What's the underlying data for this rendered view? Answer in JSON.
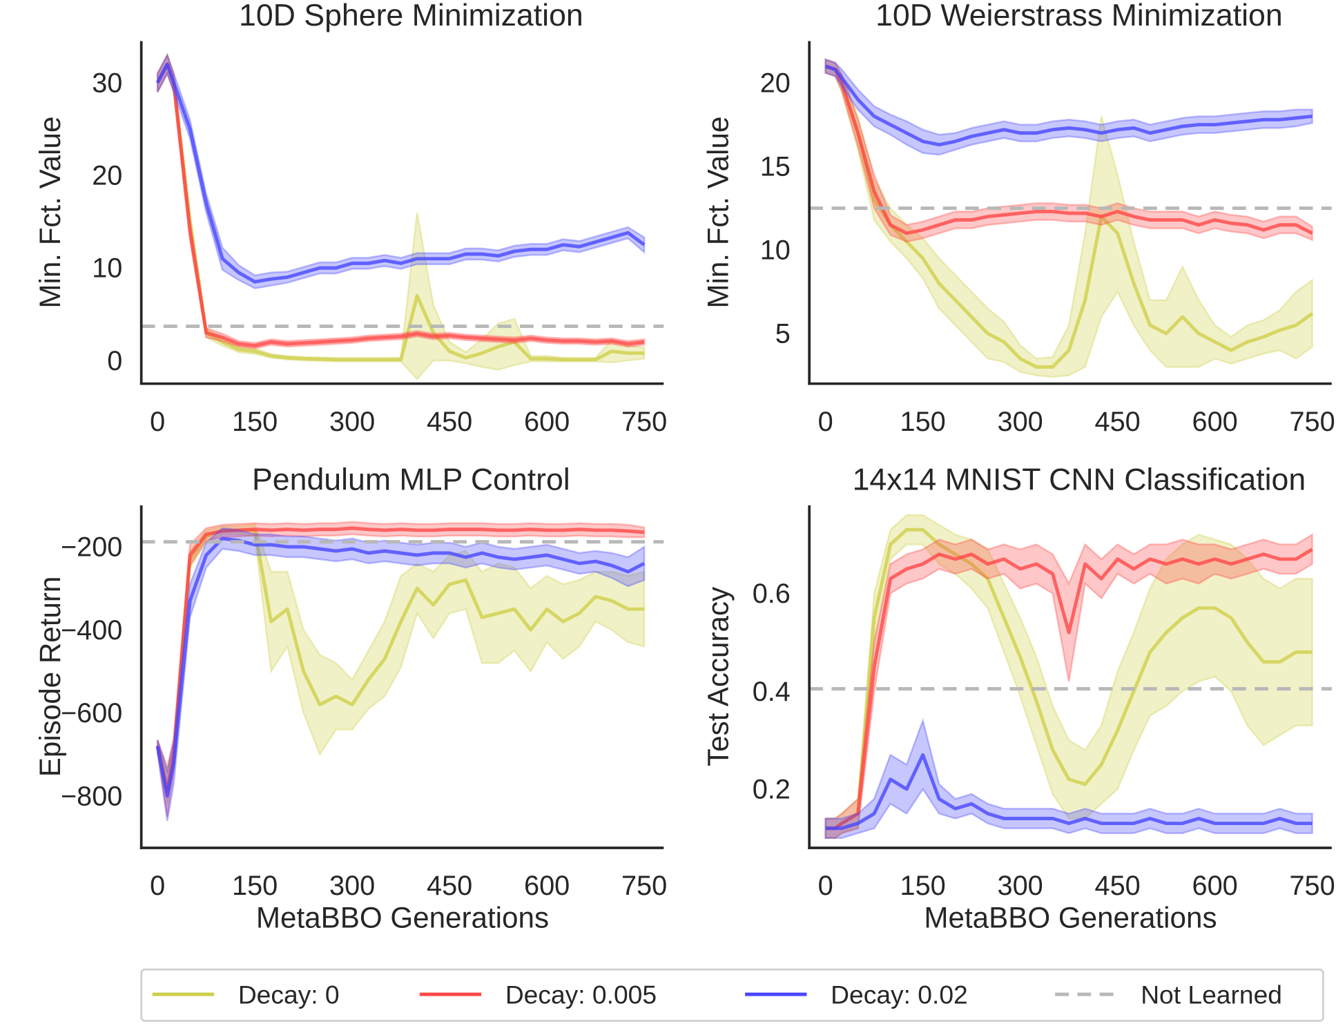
{
  "colors": {
    "decay_0": "#cfcf4a",
    "decay_0005": "#ff4747",
    "decay_002": "#4747ff",
    "not_learned": "#b8b8b8",
    "axis": "#262626"
  },
  "legend": [
    {
      "label": "Decay: 0",
      "color": "#cfcf4a",
      "style": "solid"
    },
    {
      "label": "Decay: 0.005",
      "color": "#ff4747",
      "style": "solid"
    },
    {
      "label": "Decay: 0.02",
      "color": "#4747ff",
      "style": "solid"
    },
    {
      "label": "Not Learned",
      "color": "#b8b8b8",
      "style": "dashed"
    }
  ],
  "chart_data": [
    {
      "type": "line",
      "title": "10D Sphere Minimization",
      "xlabel": "",
      "ylabel": "Min. Fct. Value",
      "xlim": [
        -25,
        780
      ],
      "ylim": [
        -2.5,
        34.5
      ],
      "xticks": [
        0,
        150,
        300,
        450,
        600,
        750
      ],
      "yticks": [
        0,
        10,
        20,
        30
      ],
      "grid": false,
      "not_learned": 3.7,
      "x": [
        0,
        15,
        25,
        50,
        75,
        100,
        125,
        150,
        175,
        200,
        225,
        250,
        275,
        300,
        325,
        350,
        375,
        400,
        425,
        450,
        475,
        500,
        525,
        550,
        575,
        600,
        625,
        650,
        675,
        700,
        725,
        750
      ],
      "series": [
        {
          "name": "Decay: 0",
          "values": [
            30,
            32,
            30,
            15,
            3,
            2,
            1.2,
            1,
            0.5,
            0.3,
            0.2,
            0.15,
            0.1,
            0.1,
            0.1,
            0.1,
            0.1,
            7,
            3,
            1,
            0.3,
            0.8,
            1.5,
            2,
            0.2,
            0.2,
            0.1,
            0.1,
            0.1,
            1,
            0.8,
            0.8
          ],
          "band": [
            1,
            1,
            1,
            1,
            0.5,
            0.4,
            0.3,
            0.3,
            0.2,
            0.2,
            0.2,
            0.2,
            0.2,
            0.2,
            0.2,
            0.2,
            0.2,
            9,
            3,
            1,
            0.6,
            1.5,
            2.5,
            2.5,
            0.3,
            0.3,
            0.2,
            0.2,
            0.2,
            1.2,
            0.8,
            0.6
          ]
        },
        {
          "name": "Decay: 0.005",
          "values": [
            30,
            32,
            30,
            14,
            3,
            2.5,
            1.8,
            1.6,
            2,
            1.8,
            1.9,
            2,
            2.1,
            2.2,
            2.4,
            2.5,
            2.6,
            2.9,
            2.6,
            2.7,
            2.5,
            2.4,
            2.3,
            2.2,
            2.4,
            2.2,
            2.1,
            2.1,
            2,
            2.1,
            1.8,
            2
          ],
          "band": [
            1,
            1,
            1,
            1,
            0.5,
            0.4,
            0.3,
            0.3,
            0.3,
            0.3,
            0.3,
            0.3,
            0.3,
            0.3,
            0.3,
            0.3,
            0.3,
            0.3,
            0.3,
            0.3,
            0.3,
            0.3,
            0.3,
            0.3,
            0.3,
            0.3,
            0.3,
            0.3,
            0.3,
            0.3,
            0.3,
            0.3
          ]
        },
        {
          "name": "Decay: 0.02",
          "values": [
            30,
            32,
            30,
            25,
            17,
            11,
            9.5,
            8.5,
            8.8,
            9,
            9.5,
            10,
            10,
            10.5,
            10.5,
            10.8,
            10.5,
            11,
            11,
            11,
            11.5,
            11.5,
            11.3,
            11.8,
            12,
            12,
            12.5,
            12.3,
            12.8,
            13.3,
            13.8,
            12.5
          ],
          "band": [
            1,
            1,
            1,
            1,
            1,
            1.2,
            0.8,
            0.7,
            0.7,
            0.6,
            0.6,
            0.6,
            0.6,
            0.6,
            0.6,
            0.6,
            0.6,
            0.6,
            0.6,
            0.6,
            0.6,
            0.6,
            0.6,
            0.6,
            0.6,
            0.6,
            0.6,
            0.6,
            0.6,
            0.6,
            0.6,
            0.8
          ]
        }
      ]
    },
    {
      "type": "line",
      "title": "10D Weierstrass Minimization",
      "xlabel": "",
      "ylabel": "Min. Fct. Value",
      "xlim": [
        -25,
        780
      ],
      "ylim": [
        2,
        22.5
      ],
      "xticks": [
        0,
        150,
        300,
        450,
        600,
        750
      ],
      "yticks": [
        5,
        10,
        15,
        20
      ],
      "grid": false,
      "not_learned": 12.5,
      "x": [
        0,
        15,
        25,
        50,
        75,
        100,
        125,
        150,
        175,
        200,
        225,
        250,
        275,
        300,
        325,
        350,
        375,
        400,
        425,
        450,
        475,
        500,
        525,
        550,
        575,
        600,
        625,
        650,
        675,
        700,
        725,
        750
      ],
      "series": [
        {
          "name": "Decay: 0",
          "values": [
            21,
            20.8,
            20,
            17,
            13,
            11.5,
            10.5,
            9.5,
            8,
            7,
            6,
            5,
            4.5,
            3.5,
            3,
            3,
            4,
            7,
            12,
            11,
            8,
            5.5,
            5,
            6,
            5,
            4.5,
            4,
            4.5,
            4.8,
            5.2,
            5.5,
            6.2
          ],
          "band": [
            0.4,
            0.4,
            0.5,
            1,
            1.2,
            1,
            1,
            1.2,
            1.5,
            1.5,
            1.5,
            1.5,
            1.2,
            0.8,
            0.5,
            0.6,
            1.5,
            4,
            6,
            3.5,
            2.5,
            1.5,
            2,
            3,
            2,
            1,
            0.8,
            1,
            1,
            1.2,
            2,
            2
          ]
        },
        {
          "name": "Decay: 0.005",
          "values": [
            21,
            20.8,
            20,
            17,
            13.5,
            11.5,
            11,
            11.2,
            11.5,
            11.8,
            11.8,
            12,
            12.1,
            12.2,
            12.3,
            12.3,
            12.2,
            12.2,
            12,
            12.3,
            12,
            11.8,
            11.8,
            11.8,
            11.5,
            11.8,
            11.6,
            11.5,
            11.2,
            11.5,
            11.5,
            11
          ],
          "band": [
            0.4,
            0.4,
            0.5,
            0.8,
            1,
            0.6,
            0.5,
            0.5,
            0.5,
            0.5,
            0.5,
            0.5,
            0.5,
            0.5,
            0.5,
            0.5,
            0.5,
            0.5,
            0.5,
            0.5,
            0.5,
            0.5,
            0.5,
            0.5,
            0.5,
            0.5,
            0.5,
            0.5,
            0.5,
            0.5,
            0.5,
            0.4
          ]
        },
        {
          "name": "Decay: 0.02",
          "values": [
            21,
            20.8,
            20.3,
            19,
            18,
            17.5,
            17,
            16.5,
            16.3,
            16.5,
            16.8,
            17,
            17.2,
            17,
            17,
            17.2,
            17.3,
            17.2,
            17,
            17.2,
            17.3,
            17,
            17.2,
            17.4,
            17.5,
            17.5,
            17.6,
            17.7,
            17.8,
            17.8,
            17.9,
            18
          ],
          "band": [
            0.4,
            0.4,
            0.5,
            0.6,
            0.6,
            0.6,
            0.7,
            0.7,
            0.6,
            0.5,
            0.5,
            0.5,
            0.5,
            0.5,
            0.5,
            0.5,
            0.5,
            0.5,
            0.5,
            0.5,
            0.5,
            0.5,
            0.5,
            0.5,
            0.5,
            0.5,
            0.5,
            0.5,
            0.5,
            0.5,
            0.5,
            0.4
          ]
        }
      ]
    },
    {
      "type": "line",
      "title": "Pendulum MLP Control",
      "xlabel": "MetaBBO Generations",
      "ylabel": "Episode Return",
      "xlim": [
        -25,
        780
      ],
      "ylim": [
        -925,
        -100
      ],
      "xticks": [
        0,
        150,
        300,
        450,
        600,
        750
      ],
      "yticks": [
        -800,
        -600,
        -400,
        -200
      ],
      "grid": false,
      "not_learned": -188,
      "x": [
        0,
        15,
        25,
        50,
        75,
        100,
        125,
        150,
        175,
        200,
        225,
        250,
        275,
        300,
        325,
        350,
        375,
        400,
        425,
        450,
        475,
        500,
        525,
        550,
        575,
        600,
        625,
        650,
        675,
        700,
        725,
        750
      ],
      "series": [
        {
          "name": "Decay: 0",
          "values": [
            -680,
            -780,
            -700,
            -230,
            -175,
            -160,
            -160,
            -160,
            -380,
            -350,
            -500,
            -580,
            -560,
            -580,
            -520,
            -470,
            -380,
            -300,
            -340,
            -290,
            -280,
            -370,
            -360,
            -350,
            -400,
            -350,
            -380,
            -360,
            -320,
            -330,
            -350,
            -350
          ],
          "band": [
            15,
            40,
            30,
            20,
            15,
            10,
            10,
            15,
            120,
            90,
            100,
            120,
            80,
            60,
            70,
            90,
            110,
            60,
            80,
            70,
            70,
            110,
            120,
            100,
            100,
            80,
            90,
            80,
            60,
            70,
            80,
            90
          ]
        },
        {
          "name": "Decay: 0.005",
          "values": [
            -680,
            -790,
            -700,
            -220,
            -170,
            -162,
            -160,
            -158,
            -160,
            -158,
            -160,
            -158,
            -158,
            -155,
            -158,
            -160,
            -158,
            -160,
            -160,
            -158,
            -158,
            -158,
            -160,
            -160,
            -158,
            -160,
            -160,
            -158,
            -160,
            -160,
            -162,
            -165
          ],
          "band": [
            15,
            60,
            40,
            25,
            15,
            15,
            15,
            15,
            15,
            15,
            15,
            15,
            15,
            15,
            15,
            15,
            15,
            15,
            15,
            15,
            15,
            15,
            15,
            15,
            15,
            15,
            15,
            15,
            15,
            15,
            15,
            12
          ]
        },
        {
          "name": "Decay: 0.02",
          "values": [
            -680,
            -800,
            -720,
            -330,
            -220,
            -180,
            -185,
            -195,
            -195,
            -200,
            -200,
            -205,
            -210,
            -205,
            -215,
            -210,
            -215,
            -220,
            -215,
            -215,
            -225,
            -215,
            -225,
            -230,
            -225,
            -220,
            -230,
            -240,
            -235,
            -245,
            -260,
            -240
          ],
          "band": [
            15,
            60,
            50,
            40,
            30,
            25,
            25,
            25,
            25,
            25,
            25,
            25,
            25,
            25,
            25,
            25,
            25,
            25,
            25,
            25,
            25,
            25,
            25,
            25,
            25,
            25,
            25,
            25,
            25,
            30,
            35,
            40
          ]
        }
      ]
    },
    {
      "type": "line",
      "title": "14x14 MNIST CNN Classification",
      "xlabel": "MetaBBO Generations",
      "ylabel": "Test Accuracy",
      "xlim": [
        -25,
        780
      ],
      "ylim": [
        0.08,
        0.78
      ],
      "xticks": [
        0,
        150,
        300,
        450,
        600,
        750
      ],
      "yticks": [
        0.2,
        0.4,
        0.6
      ],
      "grid": false,
      "not_learned": 0.405,
      "x": [
        0,
        15,
        25,
        50,
        75,
        100,
        125,
        150,
        175,
        200,
        225,
        250,
        275,
        300,
        325,
        350,
        375,
        400,
        425,
        450,
        475,
        500,
        525,
        550,
        575,
        600,
        625,
        650,
        675,
        700,
        725,
        750
      ],
      "series": [
        {
          "name": "Decay: 0",
          "values": [
            0.12,
            0.12,
            0.13,
            0.15,
            0.55,
            0.7,
            0.73,
            0.73,
            0.7,
            0.68,
            0.66,
            0.63,
            0.55,
            0.47,
            0.38,
            0.28,
            0.22,
            0.21,
            0.25,
            0.32,
            0.4,
            0.48,
            0.52,
            0.55,
            0.57,
            0.57,
            0.55,
            0.5,
            0.46,
            0.46,
            0.48,
            0.48
          ],
          "band": [
            0.02,
            0.02,
            0.02,
            0.03,
            0.05,
            0.03,
            0.03,
            0.03,
            0.04,
            0.04,
            0.05,
            0.06,
            0.07,
            0.08,
            0.09,
            0.09,
            0.08,
            0.07,
            0.08,
            0.12,
            0.12,
            0.13,
            0.15,
            0.15,
            0.15,
            0.14,
            0.15,
            0.17,
            0.17,
            0.15,
            0.15,
            0.15
          ]
        },
        {
          "name": "Decay: 0.005",
          "values": [
            0.12,
            0.12,
            0.13,
            0.15,
            0.45,
            0.63,
            0.65,
            0.66,
            0.68,
            0.67,
            0.68,
            0.66,
            0.67,
            0.65,
            0.66,
            0.64,
            0.52,
            0.66,
            0.63,
            0.67,
            0.65,
            0.67,
            0.66,
            0.67,
            0.66,
            0.67,
            0.66,
            0.67,
            0.68,
            0.67,
            0.67,
            0.69
          ],
          "band": [
            0.02,
            0.02,
            0.02,
            0.03,
            0.05,
            0.03,
            0.03,
            0.03,
            0.03,
            0.03,
            0.03,
            0.03,
            0.03,
            0.04,
            0.04,
            0.04,
            0.1,
            0.04,
            0.04,
            0.03,
            0.03,
            0.03,
            0.04,
            0.04,
            0.04,
            0.03,
            0.03,
            0.03,
            0.03,
            0.03,
            0.03,
            0.03
          ]
        },
        {
          "name": "Decay: 0.02",
          "values": [
            0.12,
            0.12,
            0.12,
            0.13,
            0.15,
            0.22,
            0.2,
            0.27,
            0.18,
            0.16,
            0.17,
            0.15,
            0.14,
            0.14,
            0.14,
            0.14,
            0.13,
            0.14,
            0.13,
            0.13,
            0.13,
            0.14,
            0.13,
            0.13,
            0.14,
            0.13,
            0.13,
            0.13,
            0.13,
            0.14,
            0.13,
            0.13
          ],
          "band": [
            0.02,
            0.02,
            0.02,
            0.02,
            0.03,
            0.05,
            0.05,
            0.07,
            0.03,
            0.02,
            0.02,
            0.02,
            0.02,
            0.02,
            0.02,
            0.02,
            0.02,
            0.02,
            0.02,
            0.02,
            0.02,
            0.02,
            0.02,
            0.02,
            0.02,
            0.02,
            0.02,
            0.02,
            0.02,
            0.02,
            0.02,
            0.02
          ]
        }
      ]
    }
  ]
}
